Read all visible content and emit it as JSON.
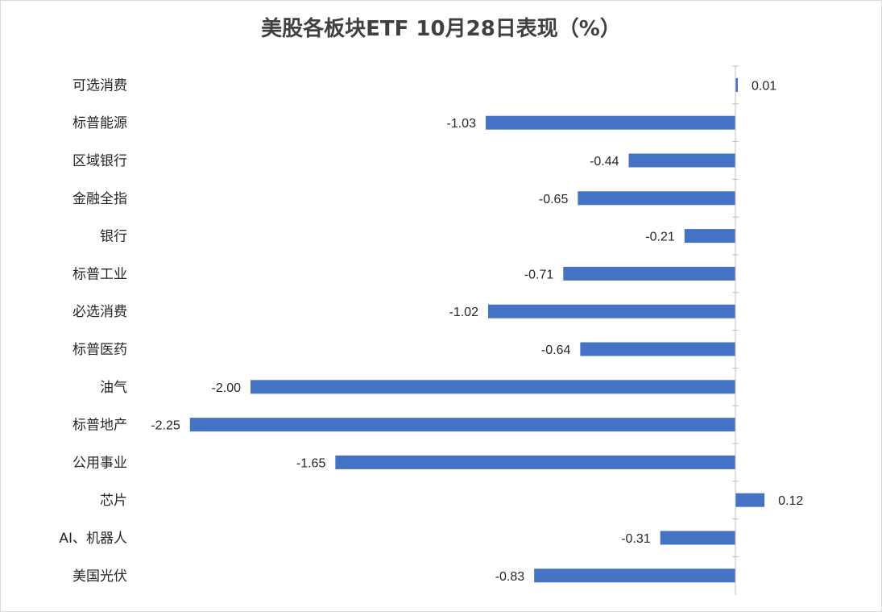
{
  "title": "美股各板块ETF  10月28日表现（%）",
  "colors": {
    "bar": "#4472c4",
    "axis": "#bfbfbf"
  },
  "chart_data": {
    "type": "bar",
    "orientation": "horizontal",
    "title": "美股各板块ETF  10月28日表现（%）",
    "categories": [
      "可选消费",
      "标普能源",
      "区域银行",
      "金融全指",
      "银行",
      "标普工业",
      "必选消费",
      "标普医药",
      "油气",
      "标普地产",
      "公用事业",
      "芯片",
      "AI、机器人",
      "美国光伏"
    ],
    "values": [
      0.01,
      -1.03,
      -0.44,
      -0.65,
      -0.21,
      -0.71,
      -1.02,
      -0.64,
      -2.0,
      -2.25,
      -1.65,
      0.12,
      -0.31,
      -0.83
    ],
    "value_labels": [
      "0.01",
      "-1.03",
      "-0.44",
      "-0.65",
      "-0.21",
      "-0.71",
      "-1.02",
      "-0.64",
      "-2.00",
      "-2.25",
      "-1.65",
      "0.12",
      "-0.31",
      "-0.83"
    ],
    "data_labels": true,
    "grid": false,
    "legend": "none"
  }
}
